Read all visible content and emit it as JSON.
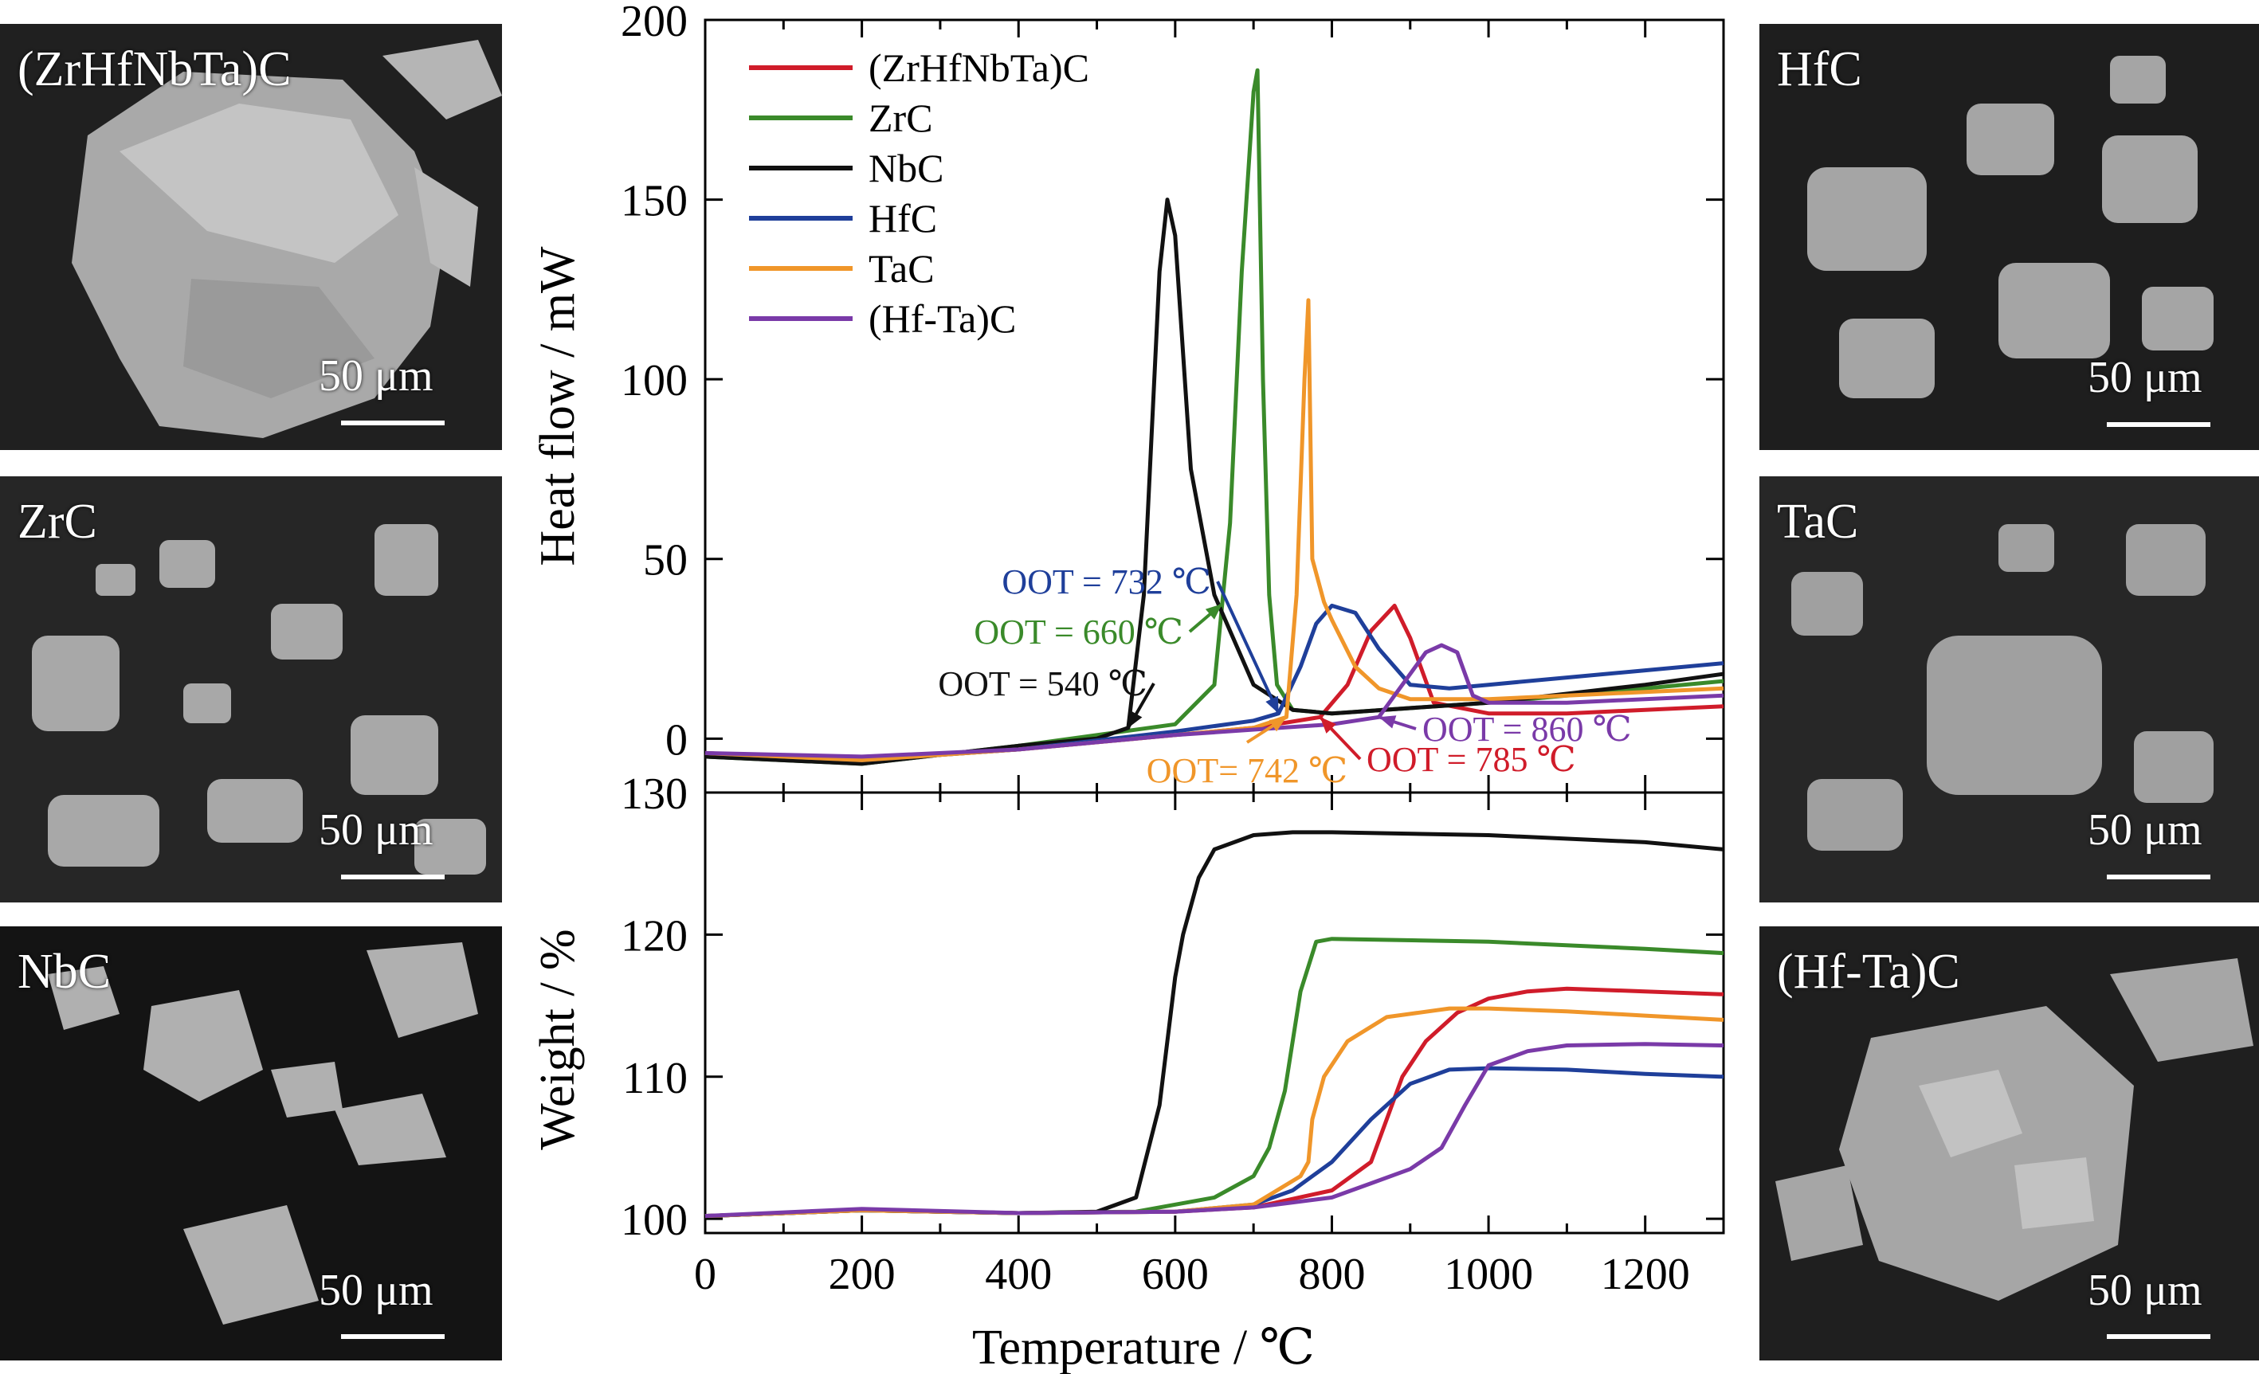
{
  "sem_panels": [
    {
      "label": "(ZrHfNbTa)C",
      "scale": "50 μm"
    },
    {
      "label": "ZrC",
      "scale": "50 μm"
    },
    {
      "label": "NbC",
      "scale": "50 μm"
    },
    {
      "label": "HfC",
      "scale": "50 μm"
    },
    {
      "label": "TaC",
      "scale": "50 μm"
    },
    {
      "label": "(Hf-Ta)C",
      "scale": "50 μm"
    }
  ],
  "colors": {
    "(ZrHfNbTa)C": "#d01c2a",
    "ZrC": "#3a8a2a",
    "NbC": "#111111",
    "HfC": "#1f3f9a",
    "TaC": "#f0962a",
    "(Hf-Ta)C": "#7a3aa8"
  },
  "chart_data": [
    {
      "type": "line",
      "title": "",
      "xlabel": "Temperature / ℃",
      "ylabel": "Heat flow / mW",
      "xlim": [
        0,
        1300
      ],
      "ylim": [
        -15,
        200
      ],
      "yticks": [
        0,
        50,
        100,
        150,
        200
      ],
      "legend": "top-left",
      "series": [
        {
          "name": "(ZrHfNbTa)C",
          "x": [
            0,
            200,
            400,
            600,
            700,
            785,
            820,
            850,
            880,
            900,
            930,
            1000,
            1100,
            1200,
            1300
          ],
          "y": [
            -4,
            -6,
            -3,
            1,
            3,
            6,
            15,
            30,
            37,
            28,
            10,
            7,
            7,
            8,
            9
          ]
        },
        {
          "name": "ZrC",
          "x": [
            0,
            200,
            400,
            500,
            600,
            650,
            670,
            685,
            700,
            705,
            712,
            720,
            730,
            750,
            800,
            1000,
            1200,
            1300
          ],
          "y": [
            -5,
            -7,
            -2,
            1,
            4,
            15,
            60,
            130,
            180,
            186,
            100,
            40,
            15,
            8,
            7,
            10,
            14,
            16
          ]
        },
        {
          "name": "NbC",
          "x": [
            0,
            200,
            400,
            500,
            540,
            560,
            580,
            590,
            600,
            620,
            650,
            700,
            750,
            800,
            1000,
            1200,
            1300
          ],
          "y": [
            -5,
            -7,
            -2,
            0,
            3,
            40,
            130,
            150,
            140,
            75,
            40,
            15,
            8,
            7,
            10,
            15,
            18
          ]
        },
        {
          "name": "HfC",
          "x": [
            0,
            200,
            400,
            600,
            700,
            732,
            760,
            780,
            800,
            830,
            860,
            900,
            950,
            1000,
            1100,
            1200,
            1300
          ],
          "y": [
            -4,
            -6,
            -3,
            2,
            5,
            7,
            20,
            32,
            37,
            35,
            25,
            15,
            14,
            15,
            17,
            19,
            21
          ]
        },
        {
          "name": "TaC",
          "x": [
            0,
            200,
            400,
            600,
            700,
            742,
            755,
            765,
            770,
            775,
            790,
            800,
            830,
            860,
            900,
            1000,
            1100,
            1200,
            1300
          ],
          "y": [
            -4,
            -6,
            -3,
            1,
            3,
            6,
            40,
            100,
            122,
            50,
            38,
            33,
            20,
            14,
            11,
            11,
            12,
            13,
            14
          ]
        },
        {
          "name": "(Hf-Ta)C",
          "x": [
            0,
            200,
            400,
            600,
            800,
            860,
            890,
            920,
            940,
            960,
            980,
            1000,
            1100,
            1200,
            1300
          ],
          "y": [
            -4,
            -5,
            -3,
            1,
            4,
            6,
            15,
            24,
            26,
            24,
            12,
            10,
            10,
            11,
            12
          ]
        }
      ],
      "annotations": [
        {
          "text": "OOT = 732 ℃",
          "series": "HfC",
          "x": 732
        },
        {
          "text": "OOT = 660 ℃",
          "series": "ZrC",
          "x": 660
        },
        {
          "text": "OOT = 540 ℃",
          "series": "NbC",
          "x": 540
        },
        {
          "text": "OOT= 742 ℃",
          "series": "TaC",
          "x": 742
        },
        {
          "text": "OOT = 860 ℃",
          "series": "(Hf-Ta)C",
          "x": 860
        },
        {
          "text": "OOT = 785 ℃",
          "series": "(ZrHfNbTa)C",
          "x": 785
        }
      ]
    },
    {
      "type": "line",
      "title": "",
      "xlabel": "Temperature / ℃",
      "ylabel": "Weight / %",
      "xlim": [
        0,
        1300
      ],
      "ylim": [
        99,
        130
      ],
      "yticks": [
        100,
        110,
        120,
        130
      ],
      "xticks": [
        0,
        200,
        400,
        600,
        800,
        1000,
        1200
      ],
      "series": [
        {
          "name": "(ZrHfNbTa)C",
          "x": [
            0,
            200,
            400,
            600,
            700,
            800,
            850,
            870,
            890,
            920,
            960,
            1000,
            1050,
            1100,
            1200,
            1300
          ],
          "y": [
            100.2,
            100.6,
            100.4,
            100.5,
            100.8,
            102,
            104,
            107,
            110,
            112.5,
            114.5,
            115.5,
            116,
            116.2,
            116,
            115.8
          ]
        },
        {
          "name": "ZrC",
          "x": [
            0,
            200,
            400,
            550,
            650,
            700,
            720,
            740,
            760,
            780,
            800,
            1000,
            1200,
            1300
          ],
          "y": [
            100.2,
            100.6,
            100.4,
            100.5,
            101.5,
            103,
            105,
            109,
            116,
            119.5,
            119.7,
            119.5,
            119,
            118.7
          ]
        },
        {
          "name": "NbC",
          "x": [
            0,
            200,
            400,
            500,
            550,
            580,
            600,
            610,
            630,
            650,
            700,
            750,
            800,
            1000,
            1200,
            1300
          ],
          "y": [
            100.2,
            100.6,
            100.4,
            100.5,
            101.5,
            108,
            117,
            120,
            124,
            126,
            127,
            127.2,
            127.2,
            127,
            126.5,
            126
          ]
        },
        {
          "name": "HfC",
          "x": [
            0,
            200,
            400,
            600,
            700,
            750,
            800,
            850,
            900,
            950,
            1000,
            1100,
            1200,
            1300
          ],
          "y": [
            100.2,
            100.6,
            100.4,
            100.5,
            101,
            102,
            104,
            107,
            109.5,
            110.5,
            110.6,
            110.5,
            110.2,
            110
          ]
        },
        {
          "name": "TaC",
          "x": [
            0,
            200,
            400,
            600,
            700,
            760,
            770,
            775,
            790,
            820,
            870,
            950,
            1000,
            1100,
            1200,
            1300
          ],
          "y": [
            100.2,
            100.6,
            100.4,
            100.5,
            101,
            103,
            104,
            107,
            110,
            112.5,
            114.2,
            114.8,
            114.8,
            114.6,
            114.3,
            114
          ]
        },
        {
          "name": "(Hf-Ta)C",
          "x": [
            0,
            200,
            400,
            600,
            700,
            800,
            850,
            900,
            940,
            970,
            1000,
            1050,
            1100,
            1200,
            1300
          ],
          "y": [
            100.2,
            100.7,
            100.4,
            100.5,
            100.8,
            101.5,
            102.5,
            103.5,
            105,
            108,
            110.8,
            111.8,
            112.2,
            112.3,
            112.2
          ]
        }
      ]
    }
  ]
}
